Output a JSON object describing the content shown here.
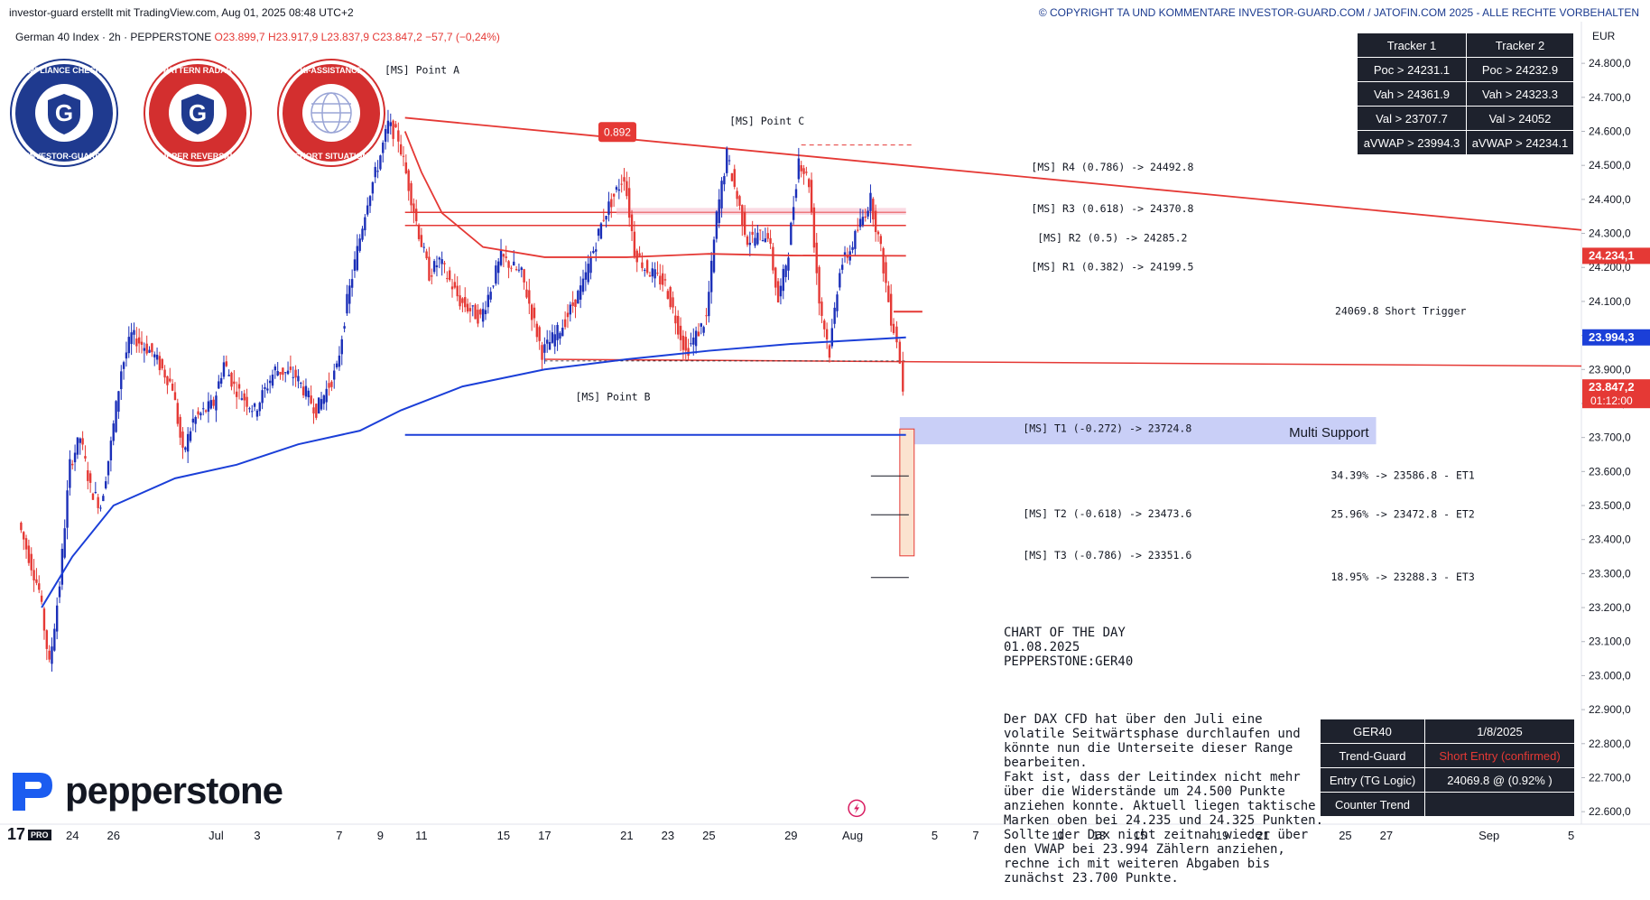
{
  "header": {
    "credit": "investor-guard erstellt mit TradingView.com, Aug 01, 2025 08:48 UTC+2",
    "copyright": "© COPYRIGHT TA UND KOMMENTARE INVESTOR-GUARD.COM / JATOFIN.COM 2025 - ALLE RECHTE VORBEHALTEN"
  },
  "symbol": {
    "name": "German 40 Index · 2h · PEPPERSTONE",
    "open": "O23.899,7",
    "high": "H23.917,9",
    "low": "L23.837,9",
    "close": "C23.847,2",
    "change": "−57,7 (−0,24%)"
  },
  "badges": [
    {
      "top_text": "COMPLIANCE CHECKED",
      "bottom_text": "INVESTOR-GUARD",
      "color": "#1f3a8f"
    },
    {
      "top_text": "PATTERN RADAR",
      "bottom_text": "UPPER REVERSAL",
      "color": "#d32f2f"
    },
    {
      "top_text": "KI-ASSISTANCE",
      "bottom_text": "SHORT SITUATION",
      "color": "#d32f2f"
    }
  ],
  "tracker_table": {
    "headers": [
      "Tracker 1",
      "Tracker 2"
    ],
    "rows": [
      [
        "Poc > 24231.1",
        "Poc > 24232.9"
      ],
      [
        "Vah > 24361.9",
        "Vah > 24323.3"
      ],
      [
        "Val > 23707.7",
        "Val > 24052"
      ],
      [
        "aVWAP > 23994.3",
        "aVWAP > 24234.1"
      ]
    ]
  },
  "status_table": {
    "rows": [
      [
        "GER40",
        "1/8/2025"
      ],
      [
        "Trend-Guard",
        "Short Entry (confirmed)"
      ],
      [
        "Entry (TG Logic)",
        "24069.8 @ (0.92% )"
      ],
      [
        "Counter Trend",
        ""
      ]
    ],
    "highlight_color": "#e53935"
  },
  "commentary": {
    "heading": "CHART OF THE DAY\n01.08.2025\nPEPPERSTONE:GER40",
    "body": "Der DAX CFD hat über den Juli eine volatile Seitwärtsphase durchlaufen und könnte nun die Unterseite dieser Range bearbeiten.\nFakt ist, dass der Leitindex nicht mehr über die Widerstände um 24.500 Punkte anziehen konnte. Aktuell liegen taktische Marken oben bei 24.235 und 24.325 Punkten.\nSollte der Dax nicht zeitnah wieder über den VWAP bei 23.994 Zählern anziehen, rechne ich mit weiteren Abgaben bis zunächst 23.700 Punkte."
  },
  "branding": {
    "logo_text": "pepperstone",
    "tv_text": "17",
    "tv_badge": "PRO"
  },
  "chart_data": {
    "type": "candlestick",
    "currency": "EUR",
    "ylim": [
      22550,
      24880
    ],
    "y_ticks": [
      22600,
      22700,
      22800,
      22900,
      23000,
      23100,
      23200,
      23300,
      23400,
      23500,
      23600,
      23700,
      23800,
      23900,
      24000,
      24100,
      24200,
      24300,
      24400,
      24500,
      24600,
      24700,
      24800
    ],
    "y_tick_labels": [
      "22.600,0",
      "22.700,0",
      "22.800,0",
      "22.900,0",
      "23.000,0",
      "23.100,0",
      "23.200,0",
      "23.300,0",
      "23.400,0",
      "23.500,0",
      "23.600,0",
      "23.700,0",
      "23.800,0",
      "23.900,0",
      "24.000,0",
      "24.100,0",
      "24.200,0",
      "24.300,0",
      "24.400,0",
      "24.500,0",
      "24.600,0",
      "24.700,0",
      "24.800,0"
    ],
    "x_ticks": [
      {
        "label": "24",
        "day": -7
      },
      {
        "label": "26",
        "day": -5
      },
      {
        "label": "Jul",
        "day": 0
      },
      {
        "label": "3",
        "day": 2
      },
      {
        "label": "7",
        "day": 6
      },
      {
        "label": "9",
        "day": 8
      },
      {
        "label": "11",
        "day": 10
      },
      {
        "label": "15",
        "day": 14
      },
      {
        "label": "17",
        "day": 16
      },
      {
        "label": "21",
        "day": 20
      },
      {
        "label": "23",
        "day": 22
      },
      {
        "label": "25",
        "day": 24
      },
      {
        "label": "29",
        "day": 28
      },
      {
        "label": "Aug",
        "day": 31
      },
      {
        "label": "5",
        "day": 35
      },
      {
        "label": "7",
        "day": 37
      },
      {
        "label": "11",
        "day": 41
      },
      {
        "label": "13",
        "day": 43
      },
      {
        "label": "15",
        "day": 45
      },
      {
        "label": "19",
        "day": 49
      },
      {
        "label": "21",
        "day": 51
      },
      {
        "label": "25",
        "day": 55
      },
      {
        "label": "27",
        "day": 57
      },
      {
        "label": "Sep",
        "day": 62
      },
      {
        "label": "5",
        "day": 66
      }
    ],
    "price_path": [
      {
        "day": -9.5,
        "price": 23450
      },
      {
        "day": -8.5,
        "price": 23250
      },
      {
        "day": -8,
        "price": 23030
      },
      {
        "day": -7.5,
        "price": 23270
      },
      {
        "day": -7,
        "price": 23620
      },
      {
        "day": -6.5,
        "price": 23700
      },
      {
        "day": -6,
        "price": 23550
      },
      {
        "day": -5.5,
        "price": 23500
      },
      {
        "day": -5,
        "price": 23680
      },
      {
        "day": -4.5,
        "price": 23900
      },
      {
        "day": -4,
        "price": 24000
      },
      {
        "day": -3,
        "price": 23950
      },
      {
        "day": -2,
        "price": 23850
      },
      {
        "day": -1.5,
        "price": 23650
      },
      {
        "day": -1,
        "price": 23750
      },
      {
        "day": 0,
        "price": 23800
      },
      {
        "day": 0.5,
        "price": 23920
      },
      {
        "day": 1,
        "price": 23850
      },
      {
        "day": 2,
        "price": 23780
      },
      {
        "day": 3,
        "price": 23900
      },
      {
        "day": 4,
        "price": 23880
      },
      {
        "day": 5,
        "price": 23780
      },
      {
        "day": 6,
        "price": 23900
      },
      {
        "day": 6.5,
        "price": 24100
      },
      {
        "day": 7,
        "price": 24250
      },
      {
        "day": 7.5,
        "price": 24400
      },
      {
        "day": 8,
        "price": 24500
      },
      {
        "day": 8.5,
        "price": 24620
      },
      {
        "day": 9,
        "price": 24580
      },
      {
        "day": 9.5,
        "price": 24440
      },
      {
        "day": 10,
        "price": 24300
      },
      {
        "day": 10.5,
        "price": 24180
      },
      {
        "day": 11,
        "price": 24220
      },
      {
        "day": 12,
        "price": 24100
      },
      {
        "day": 13,
        "price": 24050
      },
      {
        "day": 14,
        "price": 24230
      },
      {
        "day": 15,
        "price": 24180
      },
      {
        "day": 16,
        "price": 23950
      },
      {
        "day": 17,
        "price": 24030
      },
      {
        "day": 18,
        "price": 24150
      },
      {
        "day": 19,
        "price": 24350
      },
      {
        "day": 20,
        "price": 24470
      },
      {
        "day": 20.5,
        "price": 24250
      },
      {
        "day": 21,
        "price": 24200
      },
      {
        "day": 22,
        "price": 24150
      },
      {
        "day": 23,
        "price": 23950
      },
      {
        "day": 24,
        "price": 24050
      },
      {
        "day": 24.5,
        "price": 24350
      },
      {
        "day": 25,
        "price": 24530
      },
      {
        "day": 26,
        "price": 24280
      },
      {
        "day": 27,
        "price": 24300
      },
      {
        "day": 27.5,
        "price": 24100
      },
      {
        "day": 28,
        "price": 24250
      },
      {
        "day": 28.5,
        "price": 24520
      },
      {
        "day": 29,
        "price": 24450
      },
      {
        "day": 29.5,
        "price": 24100
      },
      {
        "day": 30,
        "price": 23950
      },
      {
        "day": 30.5,
        "price": 24200
      },
      {
        "day": 31,
        "price": 24250
      },
      {
        "day": 31.5,
        "price": 24330
      },
      {
        "day": 32,
        "price": 24400
      },
      {
        "day": 32.5,
        "price": 24250
      },
      {
        "day": 33,
        "price": 24050
      },
      {
        "day": 33.3,
        "price": 23990
      },
      {
        "day": 33.6,
        "price": 23847
      }
    ],
    "vwap": [
      {
        "day": -8.5,
        "price": 23200
      },
      {
        "day": -7,
        "price": 23350
      },
      {
        "day": -5,
        "price": 23500
      },
      {
        "day": -2,
        "price": 23580
      },
      {
        "day": 1,
        "price": 23620
      },
      {
        "day": 4,
        "price": 23680
      },
      {
        "day": 7,
        "price": 23720
      },
      {
        "day": 9,
        "price": 23780
      },
      {
        "day": 12,
        "price": 23850
      },
      {
        "day": 16,
        "price": 23900
      },
      {
        "day": 20,
        "price": 23930
      },
      {
        "day": 24,
        "price": 23955
      },
      {
        "day": 28,
        "price": 23975
      },
      {
        "day": 33.6,
        "price": 23994.3
      }
    ],
    "avwap_red": [
      {
        "day": 9.2,
        "price": 24600
      },
      {
        "day": 10,
        "price": 24480
      },
      {
        "day": 11,
        "price": 24360
      },
      {
        "day": 13,
        "price": 24260
      },
      {
        "day": 16,
        "price": 24230
      },
      {
        "day": 20,
        "price": 24230
      },
      {
        "day": 24,
        "price": 24240
      },
      {
        "day": 28,
        "price": 24235
      },
      {
        "day": 33.6,
        "price": 24234.1
      }
    ],
    "trendline_upper": {
      "from": {
        "day": 9.2,
        "price": 24640
      },
      "to": {
        "day": 66,
        "price": 24310
      }
    },
    "trendline_lower": {
      "from": {
        "day": 16,
        "price": 23930
      },
      "to": {
        "day": 66,
        "price": 23910
      }
    },
    "support_line": {
      "from_day": 9.2,
      "to_day": 33.6,
      "price": 23707.7
    },
    "horizontal_levels": [
      {
        "price": 24361.9,
        "from_day": 9.2,
        "to_day": 33.6
      },
      {
        "price": 24323.3,
        "from_day": 9.2,
        "to_day": 33.6
      }
    ],
    "short_trigger_mark": {
      "price": 24069.8,
      "from_day": 33,
      "to_day": 34.4
    },
    "multi_support_zone": {
      "low": 23680,
      "high": 23760,
      "from_day": 33.3,
      "to_day": 56.5,
      "label": "Multi Support"
    },
    "target_box": {
      "low": 23352,
      "high": 23725,
      "from_day": 33.3,
      "to_day": 34.0
    },
    "target_ticks": [
      23586.8,
      23472.8,
      23288.3
    ],
    "fib_badge": {
      "label": "0.892",
      "day": 19.5,
      "price": 24598
    },
    "dashed_c": {
      "day": 28.5,
      "price": 24560,
      "to_day": 34
    },
    "annotations": [
      {
        "text": "[MS] Point A",
        "day": 8.2,
        "price": 24780
      },
      {
        "text": "[MS]  Point  C",
        "day": 25,
        "price": 24630
      },
      {
        "text": "[MS] Point  B",
        "day": 17.5,
        "price": 23820
      },
      {
        "text": "[MS] R4 (0.786) -> 24492.8",
        "day": 39.7,
        "price": 24495
      },
      {
        "text": "[MS] R3 (0.618) -> 24370.8",
        "day": 39.7,
        "price": 24373
      },
      {
        "text": "[MS] R2 (0.5) -> 24285.2",
        "day": 40,
        "price": 24287
      },
      {
        "text": "[MS] R1 (0.382) -> 24199.5",
        "day": 39.7,
        "price": 24202
      },
      {
        "text": "24069.8  Short Trigger",
        "day": 54.5,
        "price": 24072
      },
      {
        "text": "[MS] T1 (-0.272) -> 23724.8",
        "day": 39.3,
        "price": 23727
      },
      {
        "text": "34.39% -> 23586.8 - ET1",
        "day": 54.3,
        "price": 23589
      },
      {
        "text": "[MS] T2 (-0.618) -> 23473.6",
        "day": 39.3,
        "price": 23476
      },
      {
        "text": "25.96% -> 23472.8 - ET2",
        "day": 54.3,
        "price": 23475
      },
      {
        "text": "[MS] T3 (-0.786) -> 23351.6",
        "day": 39.3,
        "price": 23354
      },
      {
        "text": "18.95% -> 23288.3 - ET3",
        "day": 54.3,
        "price": 23291
      }
    ],
    "price_labels": [
      {
        "text": "24.234,1",
        "price": 24234.1,
        "color": "#e53935"
      },
      {
        "text": "23.994,3",
        "price": 23994.3,
        "color": "#1b3fd8"
      },
      {
        "text": "23.847,2",
        "price": 23847.2,
        "color": "#e53935",
        "sub": "01:12:00"
      }
    ],
    "colors": {
      "up": "#1b2fb8",
      "down": "#e53935",
      "vwap": "#1b3fd8",
      "resistance": "#e53935",
      "support_zone": "#c9cff7",
      "target_box": "#fbe3cf"
    }
  }
}
